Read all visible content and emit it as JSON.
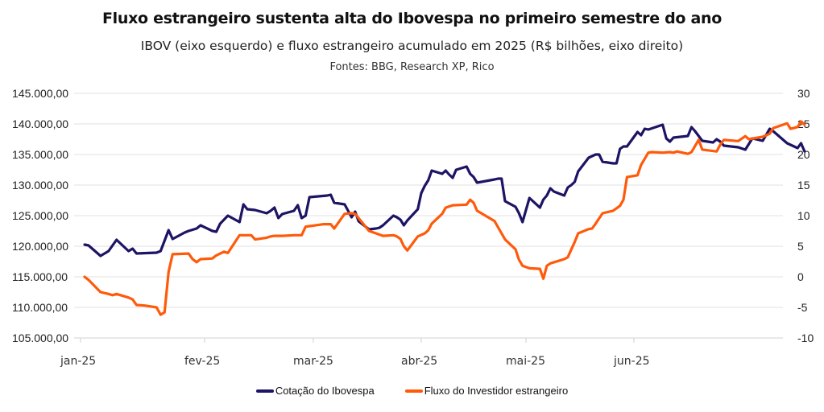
{
  "chart_data": {
    "type": "line",
    "title": "Fluxo estrangeiro sustenta alta do Ibovespa no primeiro semestre do ano",
    "subtitle": "IBOV (eixo esquerdo) e fluxo estrangeiro acumulado em 2025 (R$ bilhões, eixo direito)",
    "source": "Fontes: BBG, Research XP, Rico",
    "xlabel": "",
    "ylabel_left": "",
    "ylabel_right": "",
    "grid": true,
    "legend_position": "bottom",
    "x_ticks": [
      "jan-25",
      "fev-25",
      "mar-25",
      "abr-25",
      "mai-25",
      "jun-25"
    ],
    "y_left": {
      "range": [
        105000,
        145000
      ],
      "ticks": [
        145000,
        140000,
        135000,
        130000,
        125000,
        120000,
        115000,
        110000,
        105000
      ],
      "tick_labels": [
        "145.000,00",
        "140.000,00",
        "135.000,00",
        "130.000,00",
        "125.000,00",
        "120.000,00",
        "115.000,00",
        "110.000,00",
        "105.000,00"
      ]
    },
    "y_right": {
      "range": [
        -10,
        30
      ],
      "ticks": [
        30,
        25,
        20,
        15,
        10,
        5,
        0,
        -5,
        -10
      ],
      "tick_labels": [
        "30",
        "25",
        "20",
        "15",
        "10",
        "5",
        "0",
        "-5",
        "-10"
      ]
    },
    "series": [
      {
        "name": "Cotação do Ibovespa",
        "axis": "left",
        "color": "#1c1464",
        "points": [
          [
            "2025-01-02",
            120260
          ],
          [
            "2025-01-03",
            120130
          ],
          [
            "2025-01-06",
            118420
          ],
          [
            "2025-01-08",
            119210
          ],
          [
            "2025-01-10",
            121050
          ],
          [
            "2025-01-13",
            119210
          ],
          [
            "2025-01-14",
            119610
          ],
          [
            "2025-01-15",
            118820
          ],
          [
            "2025-01-20",
            118950
          ],
          [
            "2025-01-21",
            119210
          ],
          [
            "2025-01-23",
            122630
          ],
          [
            "2025-01-24",
            121180
          ],
          [
            "2025-01-27",
            122240
          ],
          [
            "2025-01-28",
            122500
          ],
          [
            "2025-01-30",
            122890
          ],
          [
            "2025-01-31",
            123420
          ],
          [
            "2025-02-03",
            122500
          ],
          [
            "2025-02-04",
            122370
          ],
          [
            "2025-02-05",
            123680
          ],
          [
            "2025-02-07",
            125000
          ],
          [
            "2025-02-10",
            123950
          ],
          [
            "2025-02-11",
            126840
          ],
          [
            "2025-02-12",
            126050
          ],
          [
            "2025-02-14",
            125920
          ],
          [
            "2025-02-17",
            125390
          ],
          [
            "2025-02-18",
            125790
          ],
          [
            "2025-02-19",
            126320
          ],
          [
            "2025-02-20",
            124600
          ],
          [
            "2025-02-21",
            125260
          ],
          [
            "2025-02-24",
            125790
          ],
          [
            "2025-02-25",
            126710
          ],
          [
            "2025-02-26",
            124600
          ],
          [
            "2025-02-27",
            125000
          ],
          [
            "2025-02-28",
            128030
          ],
          [
            "2025-03-05",
            128290
          ],
          [
            "2025-03-06",
            128420
          ],
          [
            "2025-03-07",
            127110
          ],
          [
            "2025-03-10",
            126840
          ],
          [
            "2025-03-11",
            125790
          ],
          [
            "2025-03-12",
            124740
          ],
          [
            "2025-03-13",
            125660
          ],
          [
            "2025-03-14",
            124080
          ],
          [
            "2025-03-17",
            122760
          ],
          [
            "2025-03-19",
            122890
          ],
          [
            "2025-03-20",
            123030
          ],
          [
            "2025-03-21",
            123420
          ],
          [
            "2025-03-24",
            125000
          ],
          [
            "2025-03-25",
            124740
          ],
          [
            "2025-03-26",
            124340
          ],
          [
            "2025-03-27",
            123420
          ],
          [
            "2025-03-28",
            124210
          ],
          [
            "2025-03-31",
            126050
          ],
          [
            "2025-04-01",
            128680
          ],
          [
            "2025-04-02",
            129870
          ],
          [
            "2025-04-03",
            130790
          ],
          [
            "2025-04-04",
            132370
          ],
          [
            "2025-04-07",
            131840
          ],
          [
            "2025-04-08",
            132370
          ],
          [
            "2025-04-09",
            131710
          ],
          [
            "2025-04-10",
            131180
          ],
          [
            "2025-04-11",
            132500
          ],
          [
            "2025-04-14",
            133030
          ],
          [
            "2025-04-15",
            131840
          ],
          [
            "2025-04-16",
            131320
          ],
          [
            "2025-04-17",
            130390
          ],
          [
            "2025-04-22",
            130920
          ],
          [
            "2025-04-23",
            131050
          ],
          [
            "2025-04-24",
            131050
          ],
          [
            "2025-04-25",
            127370
          ],
          [
            "2025-04-28",
            126450
          ],
          [
            "2025-04-29",
            125390
          ],
          [
            "2025-04-30",
            123950
          ],
          [
            "2025-05-02",
            127890
          ],
          [
            "2025-05-05",
            126320
          ],
          [
            "2025-05-06",
            127630
          ],
          [
            "2025-05-07",
            128290
          ],
          [
            "2025-05-08",
            129470
          ],
          [
            "2025-05-09",
            128950
          ],
          [
            "2025-05-12",
            128290
          ],
          [
            "2025-05-13",
            129610
          ],
          [
            "2025-05-14",
            130000
          ],
          [
            "2025-05-15",
            130530
          ],
          [
            "2025-05-16",
            132240
          ],
          [
            "2025-05-19",
            134470
          ],
          [
            "2025-05-20",
            134740
          ],
          [
            "2025-05-21",
            135000
          ],
          [
            "2025-05-22",
            135000
          ],
          [
            "2025-05-23",
            133820
          ],
          [
            "2025-05-26",
            133550
          ],
          [
            "2025-05-27",
            133550
          ],
          [
            "2025-05-28",
            135920
          ],
          [
            "2025-05-29",
            136320
          ],
          [
            "2025-05-30",
            136320
          ],
          [
            "2025-06-02",
            138680
          ],
          [
            "2025-06-03",
            138160
          ],
          [
            "2025-06-04",
            139210
          ],
          [
            "2025-06-05",
            139080
          ],
          [
            "2025-06-09",
            139870
          ],
          [
            "2025-06-10",
            137630
          ],
          [
            "2025-06-11",
            137110
          ],
          [
            "2025-06-12",
            137760
          ],
          [
            "2025-06-16",
            138030
          ],
          [
            "2025-06-17",
            139470
          ],
          [
            "2025-06-18",
            138820
          ],
          [
            "2025-06-20",
            137240
          ],
          [
            "2025-06-23",
            136970
          ],
          [
            "2025-06-24",
            137500
          ],
          [
            "2025-06-25",
            137110
          ],
          [
            "2025-06-26",
            136450
          ],
          [
            "2025-06-30",
            136180
          ],
          [
            "2025-07-02",
            135790
          ],
          [
            "2025-07-04",
            137630
          ],
          [
            "2025-07-07",
            137240
          ],
          [
            "2025-07-09",
            139210
          ],
          [
            "2025-07-10",
            138820
          ],
          [
            "2025-07-14",
            136840
          ],
          [
            "2025-07-17",
            136050
          ],
          [
            "2025-07-18",
            136840
          ],
          [
            "2025-07-19",
            135530
          ]
        ]
      },
      {
        "name": "Fluxo do Investidor estrangeiro",
        "axis": "right",
        "color": "#ff5a0a",
        "points": [
          [
            "2025-01-02",
            0.0
          ],
          [
            "2025-01-03",
            -0.5
          ],
          [
            "2025-01-06",
            -2.5
          ],
          [
            "2025-01-08",
            -2.8
          ],
          [
            "2025-01-09",
            -3.0
          ],
          [
            "2025-01-10",
            -2.8
          ],
          [
            "2025-01-13",
            -3.4
          ],
          [
            "2025-01-14",
            -3.7
          ],
          [
            "2025-01-15",
            -4.6
          ],
          [
            "2025-01-17",
            -4.7
          ],
          [
            "2025-01-20",
            -5.0
          ],
          [
            "2025-01-21",
            -6.2
          ],
          [
            "2025-01-22",
            -5.8
          ],
          [
            "2025-01-23",
            0.8
          ],
          [
            "2025-01-24",
            3.7
          ],
          [
            "2025-01-28",
            3.8
          ],
          [
            "2025-01-29",
            2.9
          ],
          [
            "2025-01-30",
            2.4
          ],
          [
            "2025-01-31",
            2.9
          ],
          [
            "2025-02-03",
            3.0
          ],
          [
            "2025-02-04",
            3.5
          ],
          [
            "2025-02-06",
            4.1
          ],
          [
            "2025-02-07",
            3.9
          ],
          [
            "2025-02-10",
            6.8
          ],
          [
            "2025-02-13",
            6.8
          ],
          [
            "2025-02-14",
            6.1
          ],
          [
            "2025-02-17",
            6.4
          ],
          [
            "2025-02-18",
            6.6
          ],
          [
            "2025-02-19",
            6.7
          ],
          [
            "2025-02-21",
            6.7
          ],
          [
            "2025-02-24",
            6.8
          ],
          [
            "2025-02-26",
            6.8
          ],
          [
            "2025-02-27",
            8.2
          ],
          [
            "2025-03-04",
            8.6
          ],
          [
            "2025-03-06",
            8.6
          ],
          [
            "2025-03-07",
            7.9
          ],
          [
            "2025-03-10",
            10.3
          ],
          [
            "2025-03-12",
            10.4
          ],
          [
            "2025-03-13",
            10.3
          ],
          [
            "2025-03-17",
            7.5
          ],
          [
            "2025-03-19",
            7.1
          ],
          [
            "2025-03-21",
            6.7
          ],
          [
            "2025-03-24",
            6.8
          ],
          [
            "2025-03-25",
            6.6
          ],
          [
            "2025-03-26",
            6.2
          ],
          [
            "2025-03-27",
            5.0
          ],
          [
            "2025-03-28",
            4.3
          ],
          [
            "2025-03-31",
            6.6
          ],
          [
            "2025-04-02",
            7.1
          ],
          [
            "2025-04-03",
            7.6
          ],
          [
            "2025-04-04",
            8.7
          ],
          [
            "2025-04-07",
            10.3
          ],
          [
            "2025-04-08",
            11.3
          ],
          [
            "2025-04-10",
            11.7
          ],
          [
            "2025-04-14",
            11.8
          ],
          [
            "2025-04-15",
            12.6
          ],
          [
            "2025-04-16",
            12.1
          ],
          [
            "2025-04-17",
            10.8
          ],
          [
            "2025-04-22",
            9.1
          ],
          [
            "2025-04-24",
            7.1
          ],
          [
            "2025-04-25",
            6.1
          ],
          [
            "2025-04-28",
            4.5
          ],
          [
            "2025-04-29",
            2.8
          ],
          [
            "2025-04-30",
            1.8
          ],
          [
            "2025-05-02",
            1.4
          ],
          [
            "2025-05-05",
            1.3
          ],
          [
            "2025-05-06",
            -0.3
          ],
          [
            "2025-05-07",
            1.8
          ],
          [
            "2025-05-08",
            2.2
          ],
          [
            "2025-05-12",
            2.9
          ],
          [
            "2025-05-13",
            3.2
          ],
          [
            "2025-05-15",
            5.7
          ],
          [
            "2025-05-16",
            7.1
          ],
          [
            "2025-05-19",
            7.8
          ],
          [
            "2025-05-20",
            7.9
          ],
          [
            "2025-05-21",
            8.7
          ],
          [
            "2025-05-23",
            10.4
          ],
          [
            "2025-05-26",
            10.8
          ],
          [
            "2025-05-28",
            11.6
          ],
          [
            "2025-05-29",
            12.6
          ],
          [
            "2025-05-30",
            16.3
          ],
          [
            "2025-06-02",
            16.6
          ],
          [
            "2025-06-03",
            18.3
          ],
          [
            "2025-06-05",
            20.3
          ],
          [
            "2025-06-06",
            20.4
          ],
          [
            "2025-06-09",
            20.3
          ],
          [
            "2025-06-11",
            20.4
          ],
          [
            "2025-06-12",
            20.3
          ],
          [
            "2025-06-13",
            20.5
          ],
          [
            "2025-06-16",
            20.1
          ],
          [
            "2025-06-17",
            20.4
          ],
          [
            "2025-06-18",
            21.4
          ],
          [
            "2025-06-19",
            22.4
          ],
          [
            "2025-06-20",
            20.8
          ],
          [
            "2025-06-24",
            20.5
          ],
          [
            "2025-06-25",
            21.6
          ],
          [
            "2025-06-26",
            22.4
          ],
          [
            "2025-06-30",
            22.2
          ],
          [
            "2025-07-02",
            23.0
          ],
          [
            "2025-07-03",
            22.5
          ],
          [
            "2025-07-07",
            22.9
          ],
          [
            "2025-07-09",
            23.4
          ],
          [
            "2025-07-10",
            24.3
          ],
          [
            "2025-07-14",
            25.1
          ],
          [
            "2025-07-15",
            24.2
          ],
          [
            "2025-07-17",
            24.5
          ],
          [
            "2025-07-18",
            25.4
          ],
          [
            "2025-07-19",
            24.9
          ]
        ]
      }
    ]
  },
  "legend": {
    "items": [
      {
        "label": "Cotação do Ibovespa",
        "color": "#1c1464"
      },
      {
        "label": "Fluxo do Investidor estrangeiro",
        "color": "#ff5a0a"
      }
    ]
  }
}
